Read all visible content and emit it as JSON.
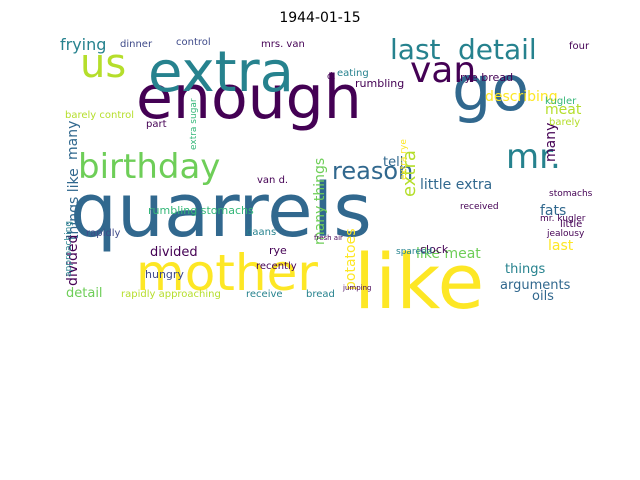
{
  "figure": {
    "title": "1944-01-15",
    "palette": [
      "#440154",
      "#31688e",
      "#26828e",
      "#35b779",
      "#6ece58",
      "#b5de2b",
      "#fde725",
      "#3e4a89"
    ]
  },
  "words": [
    {
      "text": "quarrels",
      "c": 1
    },
    {
      "text": "enough",
      "c": 0
    },
    {
      "text": "extra",
      "c": 2
    },
    {
      "text": "mother",
      "c": 6
    },
    {
      "text": "like",
      "c": 6
    },
    {
      "text": "go",
      "c": 1
    },
    {
      "text": "birthday",
      "c": 4
    },
    {
      "text": "us",
      "c": 5
    },
    {
      "text": "van",
      "c": 0
    },
    {
      "text": "detail",
      "c": 2
    },
    {
      "text": "last",
      "c": 2
    },
    {
      "text": "mr.",
      "c": 2
    },
    {
      "text": "reason",
      "c": 1
    },
    {
      "text": "frying",
      "c": 2
    },
    {
      "text": "extra",
      "c": 5
    },
    {
      "text": "things like",
      "c": 1
    },
    {
      "text": "divided",
      "c": 0
    },
    {
      "text": "many",
      "c": 1
    },
    {
      "text": "potatoes",
      "c": 6
    },
    {
      "text": "many things",
      "c": 4
    },
    {
      "text": "little extra",
      "c": 1
    },
    {
      "text": "like meat",
      "c": 4
    },
    {
      "text": "describing",
      "c": 6
    },
    {
      "text": "meat",
      "c": 5
    },
    {
      "text": "many",
      "c": 0
    },
    {
      "text": "fats",
      "c": 1
    },
    {
      "text": "last",
      "c": 6
    },
    {
      "text": "oils",
      "c": 1
    },
    {
      "text": "arguments",
      "c": 1
    },
    {
      "text": "things",
      "c": 2
    },
    {
      "text": "tell",
      "c": 1
    },
    {
      "text": "divided",
      "c": 0
    },
    {
      "text": "detail",
      "c": 4
    },
    {
      "text": "rye bread",
      "c": 0
    },
    {
      "text": "hungry",
      "c": 7
    },
    {
      "text": "rumbling",
      "c": 0
    },
    {
      "text": "rumbling stomachs",
      "c": 3
    },
    {
      "text": "barely control",
      "c": 5
    },
    {
      "text": "recently",
      "c": 0
    },
    {
      "text": "extra sugar",
      "c": 3
    },
    {
      "text": "clock",
      "c": 0
    },
    {
      "text": "daans",
      "c": 2
    },
    {
      "text": "rye",
      "c": 0
    },
    {
      "text": "mrs. van",
      "c": 0
    },
    {
      "text": "dinner",
      "c": 7
    },
    {
      "text": "control",
      "c": 7
    },
    {
      "text": "eating",
      "c": 2
    },
    {
      "text": "rapidly approaching",
      "c": 5
    },
    {
      "text": "receive",
      "c": 2
    },
    {
      "text": "bread",
      "c": 2
    },
    {
      "text": "kugler",
      "c": 3
    },
    {
      "text": "mr. kugler",
      "c": 0
    },
    {
      "text": "stomachs",
      "c": 0
    },
    {
      "text": "received",
      "c": 0
    },
    {
      "text": "jealousy",
      "c": 0
    },
    {
      "text": "spareed",
      "c": 2
    },
    {
      "text": "four",
      "c": 0
    },
    {
      "text": "barely",
      "c": 5
    },
    {
      "text": "little",
      "c": 0
    },
    {
      "text": "extra rye",
      "c": 6
    },
    {
      "text": "van d.",
      "c": 0
    },
    {
      "text": "part",
      "c": 0
    },
    {
      "text": "rapidly",
      "c": 7
    },
    {
      "text": "approaching",
      "c": 2
    },
    {
      "text": "d.",
      "c": 0
    },
    {
      "text": "fresh air",
      "c": 0
    },
    {
      "text": "jumping",
      "c": 0
    }
  ]
}
